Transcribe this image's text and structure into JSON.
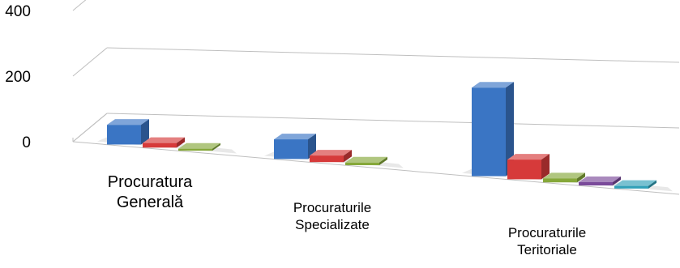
{
  "chart_data": {
    "type": "bar",
    "title": "",
    "xlabel": "",
    "ylabel": "",
    "ylim": [
      0,
      400
    ],
    "yticks": [
      0,
      200,
      400
    ],
    "ytick_labels": [
      "0",
      "200",
      "400"
    ],
    "grid": true,
    "legend": "none",
    "categories": [
      "Procuratura\nGenerală",
      "Procuraturile\nSpecializate",
      "Procuraturile\nTeritoriale"
    ],
    "series": [
      {
        "color": "#3a75c4",
        "values": [
          60,
          60,
          270
        ]
      },
      {
        "color": "#d63a3a",
        "values": [
          14,
          20,
          60
        ]
      },
      {
        "color": "#86a83a",
        "values": [
          6,
          8,
          12
        ]
      },
      {
        "color": "#7a4a9a",
        "values": [
          0,
          0,
          10
        ]
      },
      {
        "color": "#31a0b8",
        "values": [
          0,
          0,
          8
        ]
      }
    ]
  }
}
